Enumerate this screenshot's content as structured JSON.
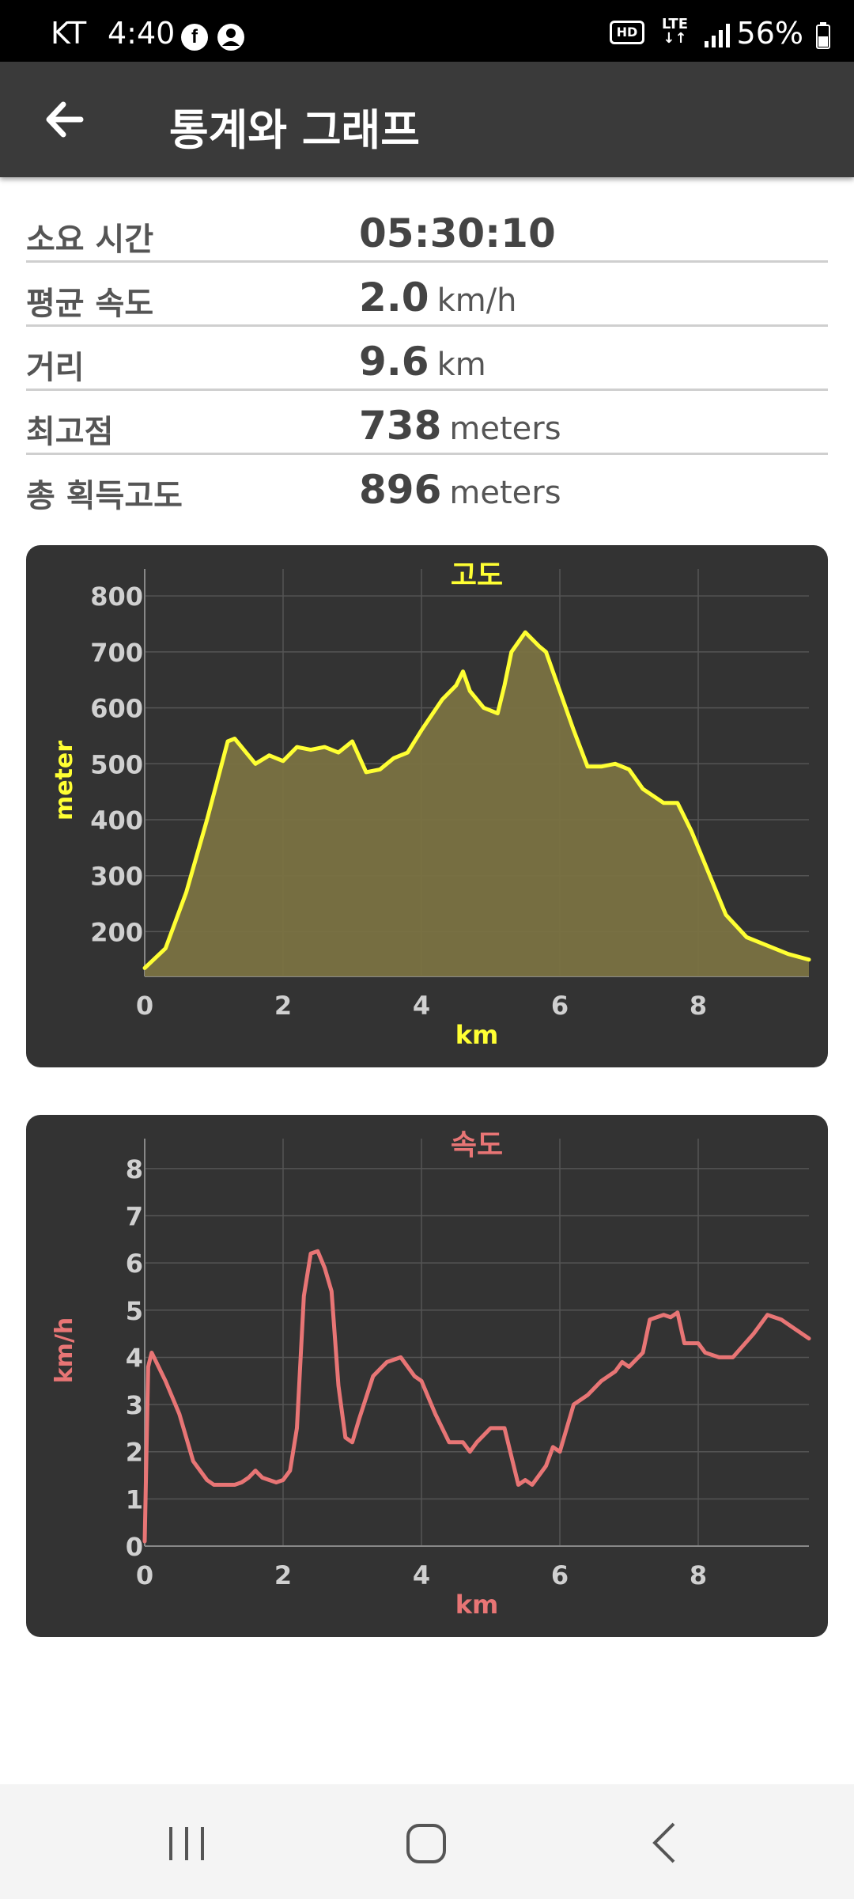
{
  "status_bar": {
    "carrier": "KT",
    "time": "4:40",
    "battery": "56%"
  },
  "app_bar": {
    "title": "통계와 그래프",
    "back_icon": "arrow-left-icon"
  },
  "stats": [
    {
      "label": "소요 시간",
      "value": "05:30:10",
      "unit": ""
    },
    {
      "label": "평균 속도",
      "value": "2.0",
      "unit": "km/h"
    },
    {
      "label": "거리",
      "value": "9.6",
      "unit": "km"
    },
    {
      "label": "최고점",
      "value": "738",
      "unit": "meters"
    },
    {
      "label": "총 획득고도",
      "value": "896",
      "unit": "meters"
    }
  ],
  "chart_data": [
    {
      "type": "area",
      "title": "고도",
      "xlabel": "km",
      "ylabel": "meter",
      "color": "#ffff33",
      "fill": "#7a7242",
      "xlim": [
        0,
        9.6
      ],
      "ylim": [
        120,
        820
      ],
      "x_ticks": [
        0,
        2,
        4,
        6,
        8
      ],
      "y_ticks": [
        200,
        300,
        400,
        500,
        600,
        700,
        800
      ],
      "grid": true,
      "x": [
        0,
        0.3,
        0.6,
        0.9,
        1.2,
        1.3,
        1.6,
        1.8,
        2.0,
        2.2,
        2.4,
        2.6,
        2.8,
        3.0,
        3.2,
        3.4,
        3.6,
        3.8,
        4.0,
        4.3,
        4.5,
        4.6,
        4.7,
        4.9,
        5.1,
        5.2,
        5.3,
        5.5,
        5.7,
        5.8,
        6.0,
        6.2,
        6.4,
        6.6,
        6.8,
        7.0,
        7.2,
        7.5,
        7.7,
        7.9,
        8.1,
        8.4,
        8.7,
        9.0,
        9.3,
        9.6
      ],
      "y": [
        135,
        170,
        270,
        400,
        540,
        545,
        500,
        515,
        505,
        530,
        525,
        530,
        520,
        540,
        485,
        490,
        510,
        520,
        560,
        615,
        640,
        665,
        630,
        600,
        590,
        640,
        700,
        735,
        710,
        700,
        630,
        560,
        495,
        495,
        500,
        490,
        455,
        430,
        430,
        380,
        320,
        230,
        190,
        175,
        160,
        150
      ]
    },
    {
      "type": "line",
      "title": "속도",
      "xlabel": "km",
      "ylabel": "km/h",
      "color": "#e87575",
      "xlim": [
        0,
        9.6
      ],
      "ylim": [
        0,
        8.3
      ],
      "x_ticks": [
        0,
        2,
        4,
        6,
        8
      ],
      "y_ticks": [
        0,
        1,
        2,
        3,
        4,
        5,
        6,
        7,
        8
      ],
      "grid": true,
      "x": [
        0,
        0.05,
        0.1,
        0.3,
        0.5,
        0.7,
        0.9,
        1.0,
        1.1,
        1.2,
        1.3,
        1.4,
        1.5,
        1.6,
        1.7,
        1.8,
        1.9,
        2.0,
        2.1,
        2.2,
        2.3,
        2.4,
        2.5,
        2.6,
        2.7,
        2.8,
        2.9,
        3.0,
        3.1,
        3.3,
        3.5,
        3.7,
        3.9,
        4.0,
        4.2,
        4.4,
        4.6,
        4.7,
        4.8,
        5.0,
        5.2,
        5.4,
        5.5,
        5.6,
        5.8,
        5.9,
        6.0,
        6.2,
        6.4,
        6.6,
        6.8,
        6.9,
        7.0,
        7.2,
        7.3,
        7.5,
        7.6,
        7.7,
        7.8,
        8.0,
        8.1,
        8.3,
        8.5,
        8.8,
        9.0,
        9.2,
        9.4,
        9.6
      ],
      "y": [
        0.1,
        3.8,
        4.1,
        3.5,
        2.8,
        1.8,
        1.4,
        1.3,
        1.3,
        1.3,
        1.3,
        1.35,
        1.45,
        1.6,
        1.45,
        1.4,
        1.35,
        1.4,
        1.6,
        2.5,
        5.3,
        6.2,
        6.25,
        5.9,
        5.4,
        3.4,
        2.3,
        2.2,
        2.7,
        3.6,
        3.9,
        4.0,
        3.6,
        3.5,
        2.8,
        2.2,
        2.2,
        2.0,
        2.2,
        2.5,
        2.5,
        1.3,
        1.4,
        1.3,
        1.7,
        2.1,
        2.0,
        3.0,
        3.2,
        3.5,
        3.7,
        3.9,
        3.8,
        4.1,
        4.8,
        4.9,
        4.85,
        4.95,
        4.3,
        4.3,
        4.1,
        4.0,
        4.0,
        4.5,
        4.9,
        4.8,
        4.6,
        4.4
      ]
    }
  ],
  "nav_bar": {
    "recent_icon": "recent-apps-icon",
    "home_icon": "home-icon",
    "back_icon": "back-icon"
  }
}
